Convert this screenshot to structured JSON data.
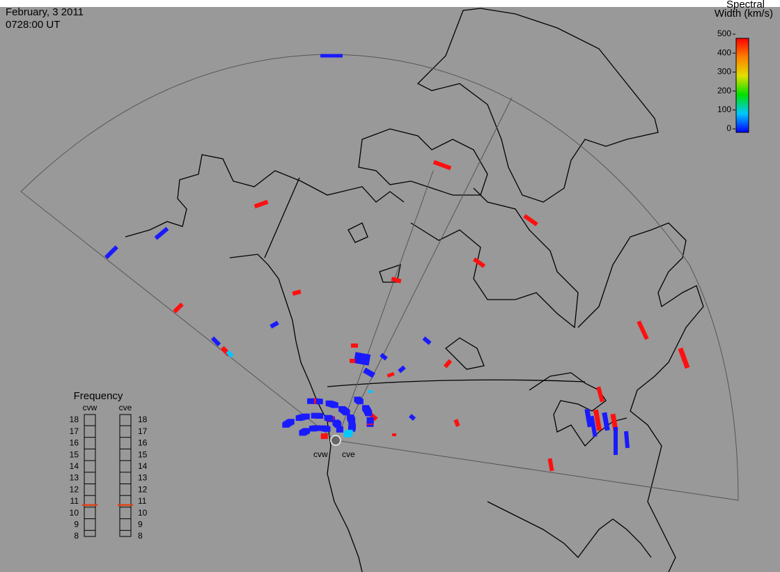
{
  "header": {
    "date": "February, 3 2011",
    "time": "0728:00 UT"
  },
  "colorbar": {
    "title": [
      "Spectral",
      "Width (km/s)"
    ],
    "ticks": [
      0,
      100,
      200,
      300,
      400,
      500
    ]
  },
  "frequency": {
    "title": "Frequency",
    "ticks": [
      8,
      9,
      10,
      11,
      12,
      13,
      14,
      15,
      16,
      17,
      18
    ],
    "radars": [
      {
        "name": "cvw",
        "value": 10.7
      },
      {
        "name": "cve",
        "value": 10.7
      }
    ]
  },
  "stations": [
    "cvw",
    "cve"
  ]
}
